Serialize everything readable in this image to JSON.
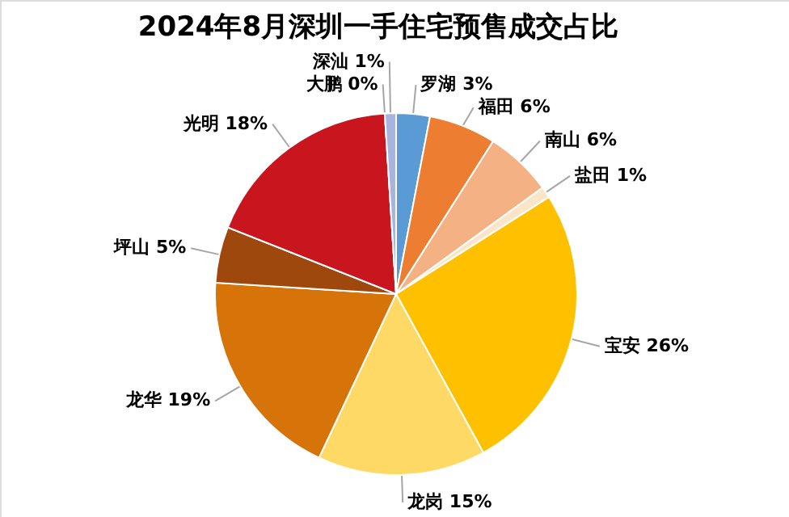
{
  "chart_data": {
    "type": "pie",
    "title": "2024年8月深圳一手住宅预售成交占比",
    "categories": [
      "罗湖",
      "福田",
      "南山",
      "盐田",
      "宝安",
      "龙岗",
      "龙华",
      "坪山",
      "光明",
      "大鹏",
      "深汕"
    ],
    "values": [
      3,
      6,
      6,
      1,
      26,
      15,
      19,
      5,
      18,
      0,
      1
    ],
    "value_labels": [
      "3%",
      "6%",
      "6%",
      "1%",
      "26%",
      "15%",
      "19%",
      "5%",
      "18%",
      "0%",
      "1%"
    ],
    "colors": [
      "#5b9bd5",
      "#ed7d31",
      "#f4b183",
      "#fbe5c8",
      "#ffc000",
      "#ffd966",
      "#d6740a",
      "#9e480e",
      "#c9151e",
      "#a5a5a5",
      "#a9b4de"
    ]
  }
}
